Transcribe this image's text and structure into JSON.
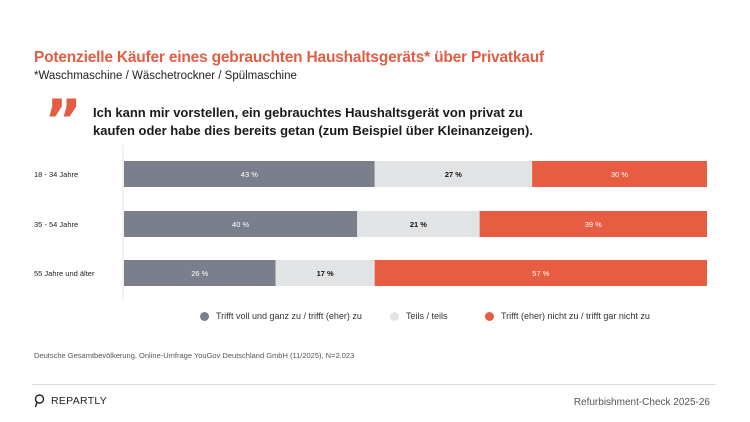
{
  "header": {
    "title": "Potenzielle Käufer eines gebrauchten Haushaltsgeräts* über Privatkauf",
    "subtitle": "*Waschmaschine / Wäschetrockner / Spülmaschine",
    "quote_icon": "quote-mark-icon",
    "quote": "Ich kann mir vorstellen, ein gebrauchtes Haushaltsgerät von privat zu kaufen oder habe dies bereits getan (zum Beispiel über Kleinanzeigen)."
  },
  "chart_data": {
    "type": "bar",
    "orientation": "horizontal",
    "stacked": true,
    "categories": [
      "18 - 34 Jahre",
      "35 - 54 Jahre",
      "55 Jahre und älter"
    ],
    "series": [
      {
        "name": "Trifft voll und ganz zu / trifft (eher) zu",
        "color": "#7a7f8b",
        "values": [
          43,
          40,
          26
        ],
        "labels": [
          "43 %",
          "40 %",
          "26 %"
        ]
      },
      {
        "name": "Teils / teils",
        "color": "#e2e3e5",
        "values": [
          27,
          21,
          17
        ],
        "labels": [
          "27 %",
          "21 %",
          "17 %"
        ]
      },
      {
        "name": "Trifft (eher) nicht zu / trifft gar nicht zu",
        "color": "#e85c42",
        "values": [
          30,
          39,
          57
        ],
        "labels": [
          "30 %",
          "39 %",
          "57 %"
        ]
      }
    ],
    "xlim": [
      0,
      100
    ],
    "legend_position": "bottom"
  },
  "footer": {
    "source": "Deutsche Gesamtbevölkerung, Online-Umfrage YouGov Deutschland GmbH (11/2025), N=2.023",
    "brand": "REPARTLY",
    "right": "Refurbishment-Check 2025-26"
  }
}
